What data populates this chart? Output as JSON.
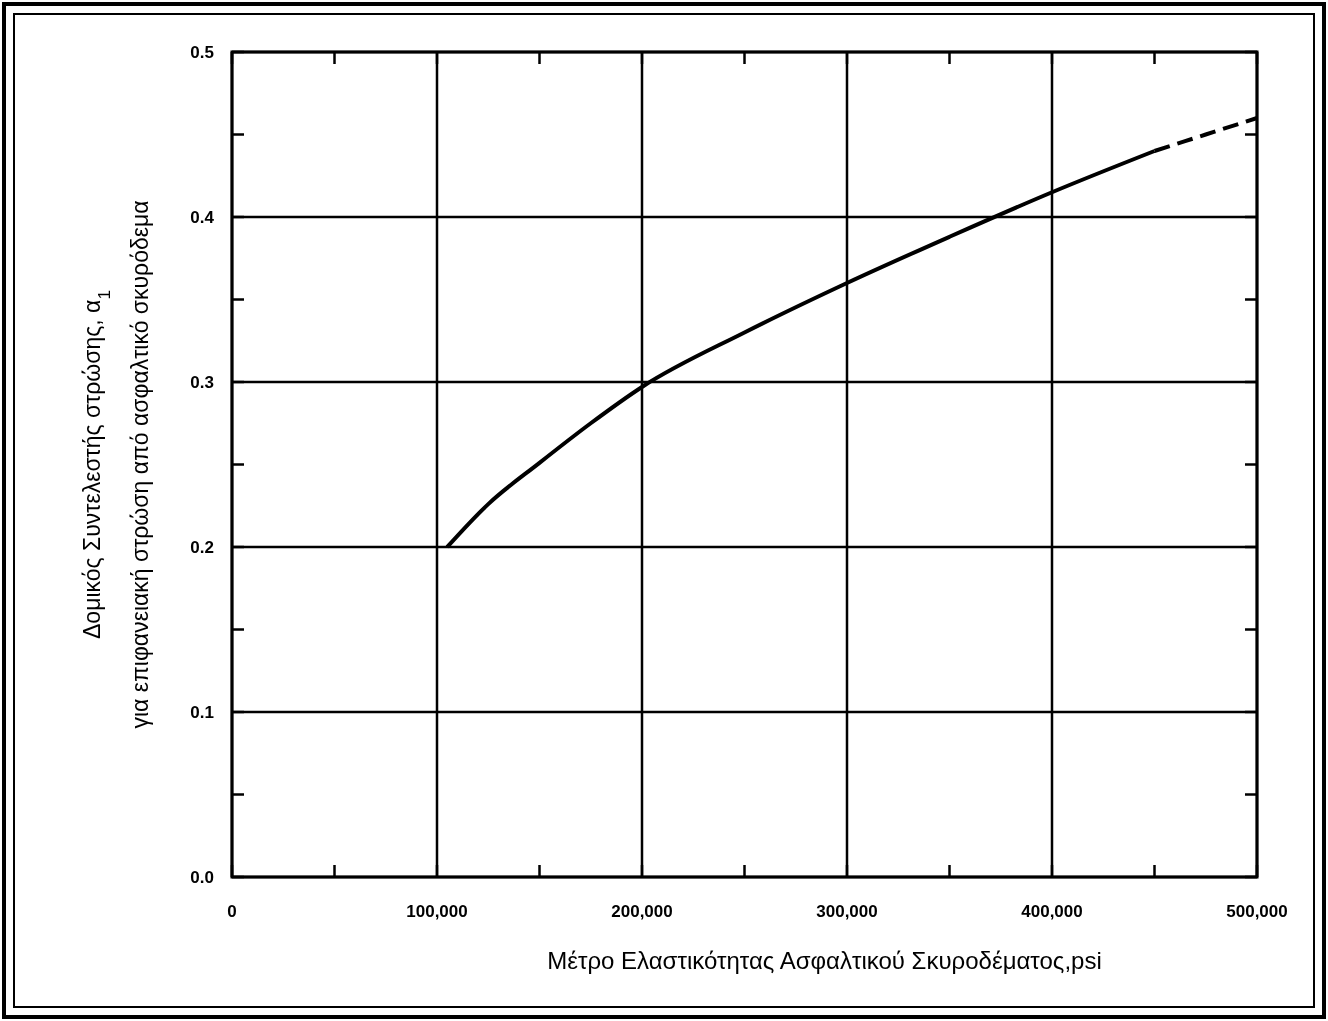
{
  "chart_data": {
    "type": "line",
    "xlabel": "Μέτρο Ελαστικότητας Ασφαλτικού Σκυροδέματος,psi",
    "ylabel": "Δομικός Συντελεστής στρώσης, α$_{1}$\nγια επιφανειακή στρώση από ασφαλτικό σκυρόδεμα",
    "xlim": [
      0,
      500000
    ],
    "xticks": [
      {
        "value": 0,
        "label": "0"
      },
      {
        "value": 50000,
        "label": null
      },
      {
        "value": 100000,
        "label": "100,000"
      },
      {
        "value": 150000,
        "label": null
      },
      {
        "value": 200000,
        "label": "200,000"
      },
      {
        "value": 250000,
        "label": null
      },
      {
        "value": 300000,
        "label": "300,000"
      },
      {
        "value": 350000,
        "label": null
      },
      {
        "value": 400000,
        "label": "400,000"
      },
      {
        "value": 450000,
        "label": null
      },
      {
        "value": 500000,
        "label": "500,000"
      }
    ],
    "ylim": [
      0,
      0.5
    ],
    "yticks": [
      {
        "value": 0,
        "label": "0.0"
      },
      {
        "value": 0.05,
        "label": null
      },
      {
        "value": 0.1,
        "label": "0.1"
      },
      {
        "value": 0.15,
        "label": null
      },
      {
        "value": 0.2,
        "label": "0.2"
      },
      {
        "value": 0.25,
        "label": null
      },
      {
        "value": 0.3,
        "label": "0.3"
      },
      {
        "value": 0.35,
        "label": null
      },
      {
        "value": 0.4,
        "label": "0.4"
      },
      {
        "value": 0.45,
        "label": null
      },
      {
        "value": 0.5,
        "label": "0.5"
      }
    ],
    "grid": true,
    "series": [
      {
        "color": "#000000",
        "line_style": "solid",
        "x": [
          105000,
          125000,
          150000,
          175000,
          200000,
          250000,
          300000,
          350000,
          400000,
          450000
        ],
        "values": [
          0.2,
          0.226,
          0.251,
          0.275,
          0.297,
          0.33,
          0.36,
          0.388,
          0.415,
          0.44
        ]
      },
      {
        "color": "#000000",
        "line_style": "dashed",
        "x": [
          450000,
          475000,
          500000
        ],
        "values": [
          0.44,
          0.45,
          0.46
        ]
      }
    ]
  }
}
